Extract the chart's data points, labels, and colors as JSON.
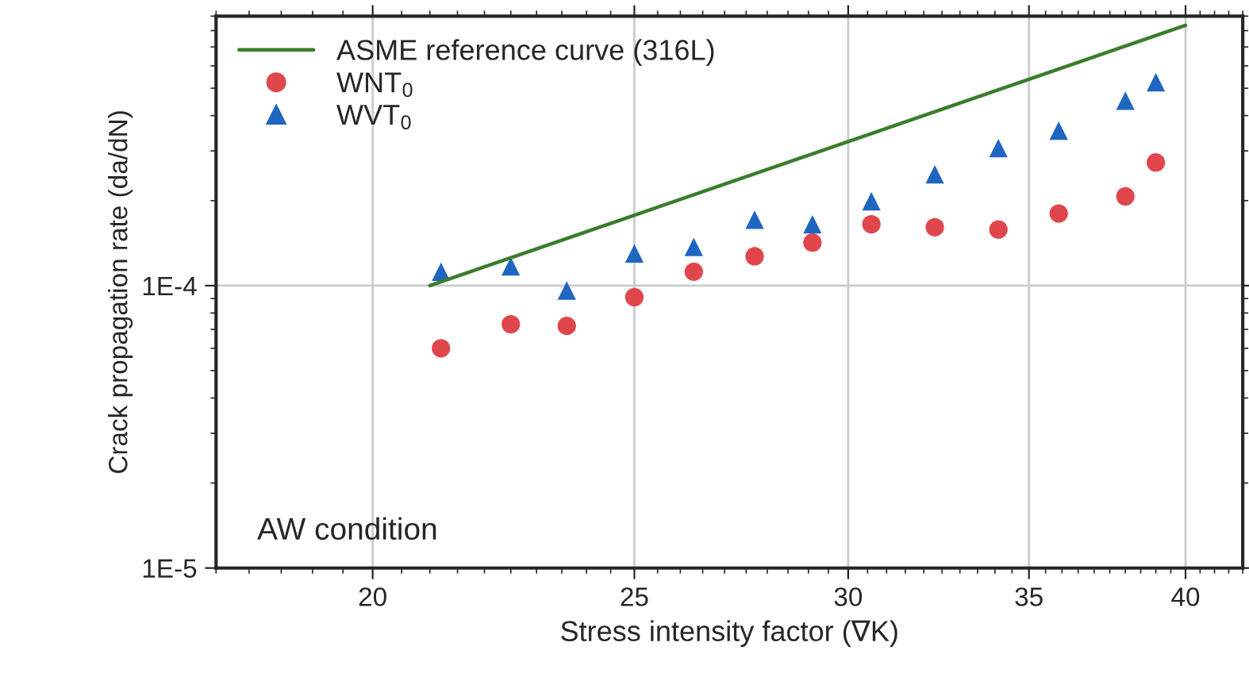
{
  "chart_data": {
    "type": "scatter",
    "xlabel": "Stress intensity factor (∇K)",
    "ylabel": "Crack propagation rate (da/dN)",
    "log": "xy",
    "grid": true,
    "legend": "top left",
    "xlim": [
      17.5,
      42
    ],
    "xticks": [
      20,
      25,
      30,
      35,
      40
    ],
    "ylim": [
      1e-05,
      0.0009
    ],
    "yticks": [
      {
        "value": 1e-05,
        "label": "1E-5"
      },
      {
        "value": 0.0001,
        "label": "1E-4"
      }
    ],
    "annotations": [
      "AW condition"
    ],
    "x": [
      21.2,
      22.5,
      23.6,
      25.0,
      26.3,
      27.7,
      29.1,
      30.6,
      32.3,
      34.1,
      35.9,
      38.0,
      39.0
    ],
    "series": [
      {
        "name": "ASME reference curve (316L)",
        "type": "line",
        "color": "#3a7d2c",
        "marker": "none",
        "line_style": "solid",
        "x": [
          21.0,
          40.0
        ],
        "values": [
          0.0001,
          0.000835
        ]
      },
      {
        "name": "WNT$_{0}$",
        "color": "#e0474c",
        "marker": "circle",
        "values": [
          6e-05,
          7.3e-05,
          7.2e-05,
          9.1e-05,
          0.000112,
          0.000127,
          0.000142,
          0.000165,
          0.000161,
          0.000158,
          0.00018,
          0.000207,
          0.000273
        ]
      },
      {
        "name": "WVT$_{0}$",
        "color": "#1f66c0",
        "marker": "triangle",
        "values": [
          0.000112,
          0.000117,
          9.6e-05,
          0.00013,
          0.000137,
          0.000171,
          0.000165,
          0.000199,
          0.000248,
          0.000307,
          0.000354,
          0.000452,
          0.000525
        ]
      }
    ]
  }
}
